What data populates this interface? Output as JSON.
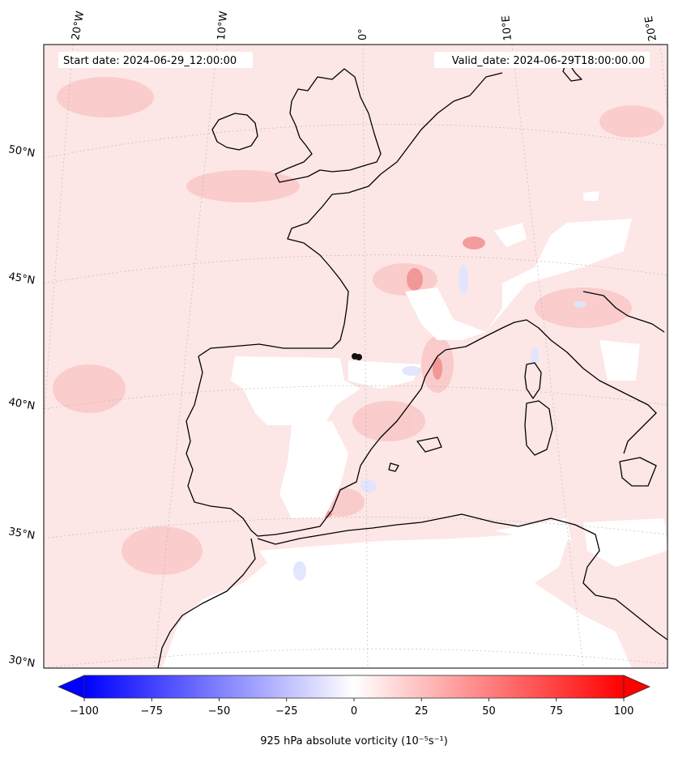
{
  "map": {
    "start_date": "Start date: 2024-06-29_12:00:00",
    "valid_date": "Valid_date: 2024-06-29T18:00:00.00",
    "lon_labels": [
      "20°W",
      "10°W",
      "0°",
      "10°E",
      "20°E"
    ],
    "lat_labels": [
      "50°N",
      "45°N",
      "40°N",
      "35°N",
      "30°N"
    ],
    "colorbar": {
      "label": "925 hPa absolute vorticity (10⁻⁵s⁻¹)",
      "ticks": [
        "−100",
        "−75",
        "−50",
        "−25",
        "0",
        "25",
        "50",
        "75",
        "100"
      ],
      "range": [
        -100,
        100
      ],
      "colormap": "bwr"
    },
    "colors": {
      "background_field": "#fde4e4",
      "coast": "#000000",
      "low_value": "#0000ff",
      "high_value": "#ff0000",
      "zero": "#ffffff"
    }
  }
}
